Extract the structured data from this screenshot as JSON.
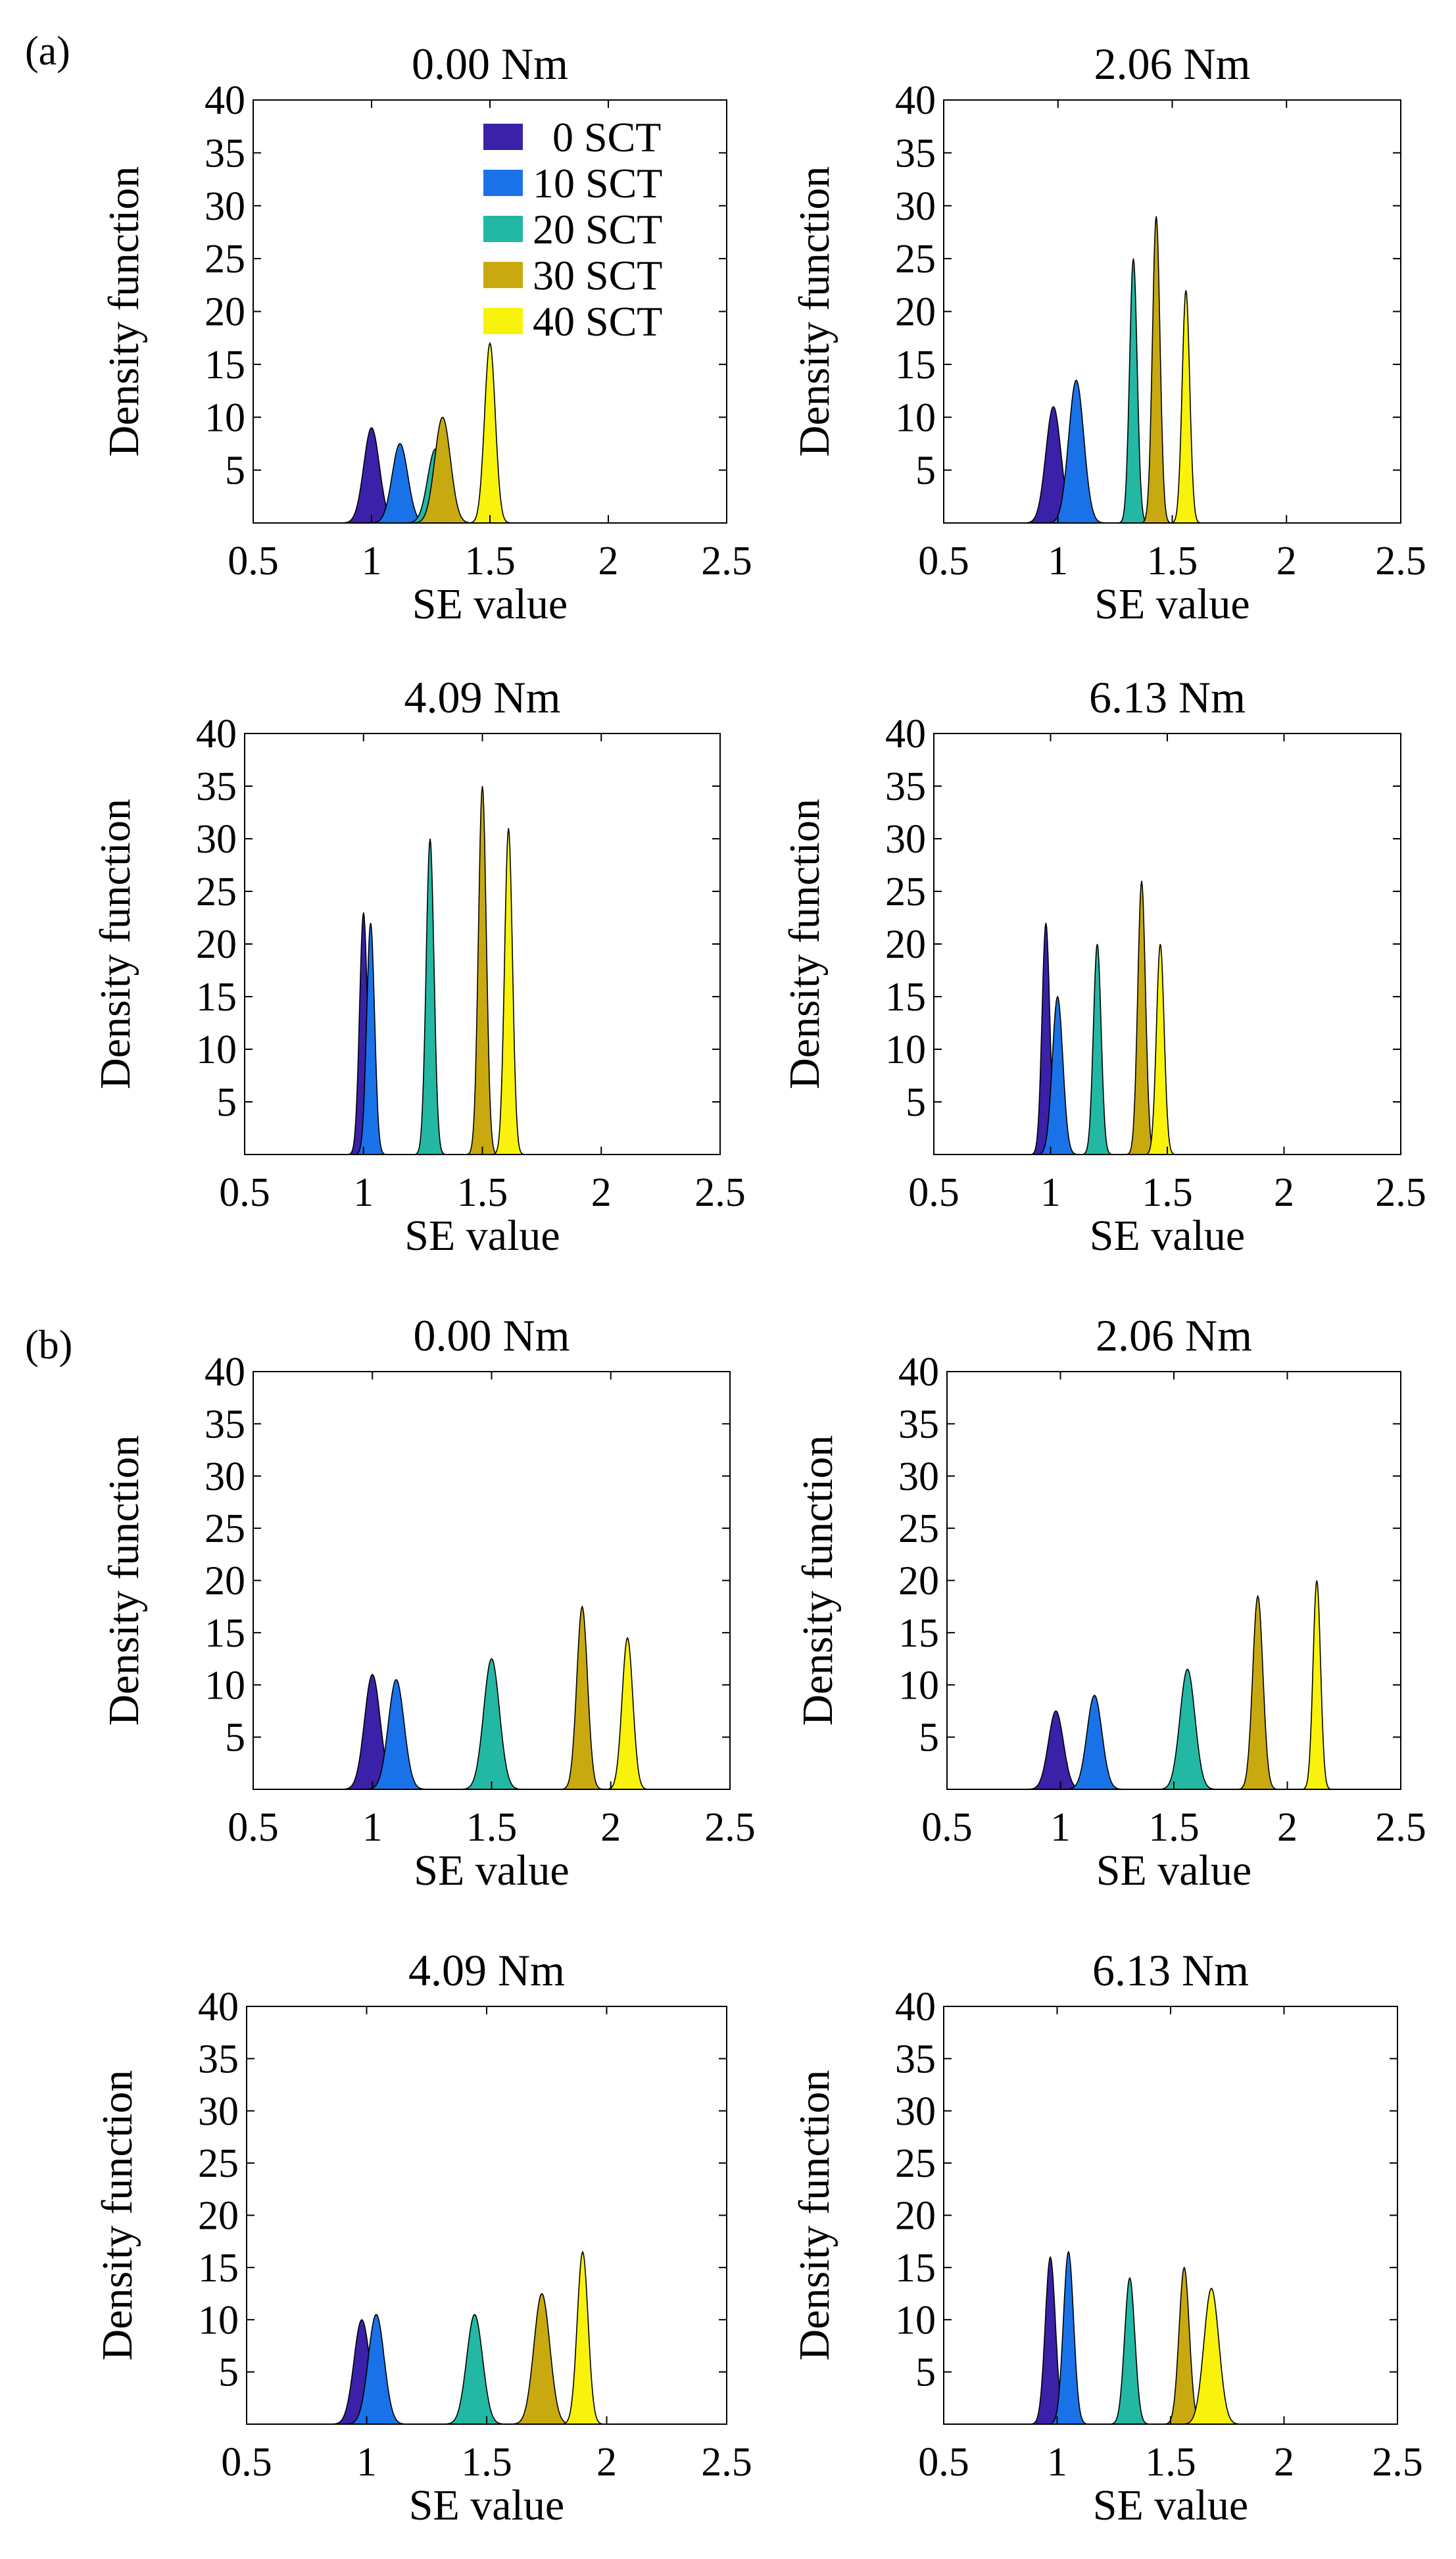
{
  "figure": {
    "panel_labels": [
      "(a)",
      "(b)"
    ],
    "legend": {
      "placement": "top-right of first subplot",
      "entries": [
        {
          "label": "0 SCT",
          "color": "#3a21a8"
        },
        {
          "label": "10 SCT",
          "color": "#1a72e8"
        },
        {
          "label": "20 SCT",
          "color": "#22b8a4"
        },
        {
          "label": "30 SCT",
          "color": "#c8aa10"
        },
        {
          "label": "40 SCT",
          "color": "#f8f20c"
        }
      ]
    }
  },
  "chart_data": [
    {
      "panel": "(a)",
      "type": "area",
      "title": "0.00 Nm",
      "xlabel": "SE value",
      "ylabel": "Density function",
      "xlim": [
        0.5,
        2.5
      ],
      "ylim": [
        0,
        40
      ],
      "xticks": [
        "0.5",
        "1",
        "1.5",
        "2",
        "2.5"
      ],
      "yticks": [
        "5",
        "10",
        "15",
        "20",
        "25",
        "30",
        "35",
        "40"
      ],
      "series": [
        {
          "name": "0 SCT",
          "color": "#3a21a8",
          "mean": 1.0,
          "peak": 9
        },
        {
          "name": "10 SCT",
          "color": "#1a72e8",
          "mean": 1.12,
          "peak": 7.5
        },
        {
          "name": "20 SCT",
          "color": "#22b8a4",
          "mean": 1.27,
          "peak": 7
        },
        {
          "name": "30 SCT",
          "color": "#c8aa10",
          "mean": 1.3,
          "peak": 10
        },
        {
          "name": "40 SCT",
          "color": "#f8f20c",
          "mean": 1.5,
          "peak": 17
        }
      ]
    },
    {
      "panel": "(a)",
      "type": "area",
      "title": "2.06 Nm",
      "xlabel": "SE value",
      "ylabel": "Density function",
      "xlim": [
        0.5,
        2.5
      ],
      "ylim": [
        0,
        40
      ],
      "xticks": [
        "0.5",
        "1",
        "1.5",
        "2",
        "2.5"
      ],
      "yticks": [
        "5",
        "10",
        "15",
        "20",
        "25",
        "30",
        "35",
        "40"
      ],
      "series": [
        {
          "name": "0 SCT",
          "color": "#3a21a8",
          "mean": 0.98,
          "peak": 11
        },
        {
          "name": "10 SCT",
          "color": "#1a72e8",
          "mean": 1.08,
          "peak": 13.5
        },
        {
          "name": "20 SCT",
          "color": "#22b8a4",
          "mean": 1.33,
          "peak": 25
        },
        {
          "name": "30 SCT",
          "color": "#c8aa10",
          "mean": 1.43,
          "peak": 29
        },
        {
          "name": "40 SCT",
          "color": "#f8f20c",
          "mean": 1.56,
          "peak": 22
        }
      ]
    },
    {
      "panel": "(a)",
      "type": "area",
      "title": "4.09 Nm",
      "xlabel": "SE value",
      "ylabel": "Density function",
      "xlim": [
        0.5,
        2.5
      ],
      "ylim": [
        0,
        40
      ],
      "xticks": [
        "0.5",
        "1",
        "1.5",
        "2",
        "2.5"
      ],
      "yticks": [
        "5",
        "10",
        "15",
        "20",
        "25",
        "30",
        "35",
        "40"
      ],
      "series": [
        {
          "name": "0 SCT",
          "color": "#3a21a8",
          "mean": 1.0,
          "peak": 23
        },
        {
          "name": "10 SCT",
          "color": "#1a72e8",
          "mean": 1.03,
          "peak": 22
        },
        {
          "name": "20 SCT",
          "color": "#22b8a4",
          "mean": 1.28,
          "peak": 30
        },
        {
          "name": "30 SCT",
          "color": "#c8aa10",
          "mean": 1.5,
          "peak": 35
        },
        {
          "name": "40 SCT",
          "color": "#f8f20c",
          "mean": 1.61,
          "peak": 31
        }
      ]
    },
    {
      "panel": "(a)",
      "type": "area",
      "title": "6.13 Nm",
      "xlabel": "SE value",
      "ylabel": "Density function",
      "xlim": [
        0.5,
        2.5
      ],
      "ylim": [
        0,
        40
      ],
      "xticks": [
        "0.5",
        "1",
        "1.5",
        "2",
        "2.5"
      ],
      "yticks": [
        "5",
        "10",
        "15",
        "20",
        "25",
        "30",
        "35",
        "40"
      ],
      "series": [
        {
          "name": "0 SCT",
          "color": "#3a21a8",
          "mean": 0.98,
          "peak": 22
        },
        {
          "name": "10 SCT",
          "color": "#1a72e8",
          "mean": 1.03,
          "peak": 15
        },
        {
          "name": "20 SCT",
          "color": "#22b8a4",
          "mean": 1.2,
          "peak": 20
        },
        {
          "name": "30 SCT",
          "color": "#c8aa10",
          "mean": 1.39,
          "peak": 26
        },
        {
          "name": "40 SCT",
          "color": "#f8f20c",
          "mean": 1.47,
          "peak": 20
        }
      ]
    },
    {
      "panel": "(b)",
      "type": "area",
      "title": "0.00 Nm",
      "xlabel": "SE value",
      "ylabel": "Density function",
      "xlim": [
        0.5,
        2.5
      ],
      "ylim": [
        0,
        40
      ],
      "xticks": [
        "0.5",
        "1",
        "1.5",
        "2",
        "2.5"
      ],
      "yticks": [
        "5",
        "10",
        "15",
        "20",
        "25",
        "30",
        "35",
        "40"
      ],
      "series": [
        {
          "name": "0 SCT",
          "color": "#3a21a8",
          "mean": 1.0,
          "peak": 11
        },
        {
          "name": "10 SCT",
          "color": "#1a72e8",
          "mean": 1.1,
          "peak": 10.5
        },
        {
          "name": "20 SCT",
          "color": "#22b8a4",
          "mean": 1.5,
          "peak": 12.5
        },
        {
          "name": "30 SCT",
          "color": "#c8aa10",
          "mean": 1.88,
          "peak": 17.5
        },
        {
          "name": "40 SCT",
          "color": "#f8f20c",
          "mean": 2.07,
          "peak": 14.5
        }
      ]
    },
    {
      "panel": "(b)",
      "type": "area",
      "title": "2.06 Nm",
      "xlabel": "SE value",
      "ylabel": "Density function",
      "xlim": [
        0.5,
        2.5
      ],
      "ylim": [
        0,
        40
      ],
      "xticks": [
        "0.5",
        "1",
        "1.5",
        "2",
        "2.5"
      ],
      "yticks": [
        "5",
        "10",
        "15",
        "20",
        "25",
        "30",
        "35",
        "40"
      ],
      "series": [
        {
          "name": "0 SCT",
          "color": "#3a21a8",
          "mean": 0.98,
          "peak": 7.5
        },
        {
          "name": "10 SCT",
          "color": "#1a72e8",
          "mean": 1.15,
          "peak": 9
        },
        {
          "name": "20 SCT",
          "color": "#22b8a4",
          "mean": 1.56,
          "peak": 11.5
        },
        {
          "name": "30 SCT",
          "color": "#c8aa10",
          "mean": 1.87,
          "peak": 18.5
        },
        {
          "name": "40 SCT",
          "color": "#f8f20c",
          "mean": 2.13,
          "peak": 20
        }
      ]
    },
    {
      "panel": "(b)",
      "type": "area",
      "title": "4.09 Nm",
      "xlabel": "SE value",
      "ylabel": "Density function",
      "xlim": [
        0.5,
        2.5
      ],
      "ylim": [
        0,
        40
      ],
      "xticks": [
        "0.5",
        "1",
        "1.5",
        "2",
        "2.5"
      ],
      "yticks": [
        "5",
        "10",
        "15",
        "20",
        "25",
        "30",
        "35",
        "40"
      ],
      "series": [
        {
          "name": "0 SCT",
          "color": "#3a21a8",
          "mean": 0.98,
          "peak": 10
        },
        {
          "name": "10 SCT",
          "color": "#1a72e8",
          "mean": 1.04,
          "peak": 10.5
        },
        {
          "name": "20 SCT",
          "color": "#22b8a4",
          "mean": 1.45,
          "peak": 10.5
        },
        {
          "name": "30 SCT",
          "color": "#c8aa10",
          "mean": 1.73,
          "peak": 12.5
        },
        {
          "name": "40 SCT",
          "color": "#f8f20c",
          "mean": 1.9,
          "peak": 16.5
        }
      ]
    },
    {
      "panel": "(b)",
      "type": "area",
      "title": "6.13 Nm",
      "xlabel": "SE value",
      "ylabel": "Density function",
      "xlim": [
        0.5,
        2.5
      ],
      "ylim": [
        0,
        40
      ],
      "xticks": [
        "0.5",
        "1",
        "1.5",
        "2",
        "2.5"
      ],
      "yticks": [
        "5",
        "10",
        "15",
        "20",
        "25",
        "30",
        "35",
        "40"
      ],
      "series": [
        {
          "name": "0 SCT",
          "color": "#3a21a8",
          "mean": 0.97,
          "peak": 16
        },
        {
          "name": "10 SCT",
          "color": "#1a72e8",
          "mean": 1.05,
          "peak": 16.5
        },
        {
          "name": "20 SCT",
          "color": "#22b8a4",
          "mean": 1.32,
          "peak": 14
        },
        {
          "name": "30 SCT",
          "color": "#c8aa10",
          "mean": 1.56,
          "peak": 15
        },
        {
          "name": "40 SCT",
          "color": "#f8f20c",
          "mean": 1.68,
          "peak": 13
        }
      ]
    }
  ]
}
